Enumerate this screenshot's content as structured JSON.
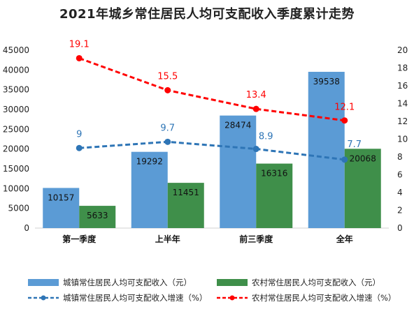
{
  "chart_data": {
    "type": "bar",
    "title": "2021年城乡常住居民人均可支配收入季度累计走势",
    "categories": [
      "第一季度",
      "上半年",
      "前三季度",
      "全年"
    ],
    "ylim": [
      0,
      45000
    ],
    "y2lim": [
      0,
      20
    ],
    "yticks": [
      0,
      5000,
      10000,
      15000,
      20000,
      25000,
      30000,
      35000,
      40000,
      45000
    ],
    "y2ticks": [
      0,
      2,
      4,
      6,
      8,
      10,
      12,
      14,
      16,
      18,
      20
    ],
    "grid": false,
    "legend_position": "bottom",
    "series": [
      {
        "name": "城镇常住居民人均可支配收入（元）",
        "kind": "bar",
        "axis": "left",
        "color": "#5b9bd5",
        "values": [
          10157,
          19292,
          28474,
          39538
        ]
      },
      {
        "name": "农村常住居民人均可支配收入（元）",
        "kind": "bar",
        "axis": "left",
        "color": "#3f8f4a",
        "values": [
          5633,
          11451,
          16316,
          20068
        ]
      },
      {
        "name": "城镇常住居民人均可支配收入增速（%）",
        "kind": "line",
        "axis": "right",
        "color": "#2e75b6",
        "values": [
          9,
          9.7,
          8.9,
          7.7
        ]
      },
      {
        "name": "农村常住居民人均可支配收入增速（%）",
        "kind": "line",
        "axis": "right",
        "color": "#ff0000",
        "values": [
          19.1,
          15.5,
          13.4,
          12.1
        ]
      }
    ]
  }
}
